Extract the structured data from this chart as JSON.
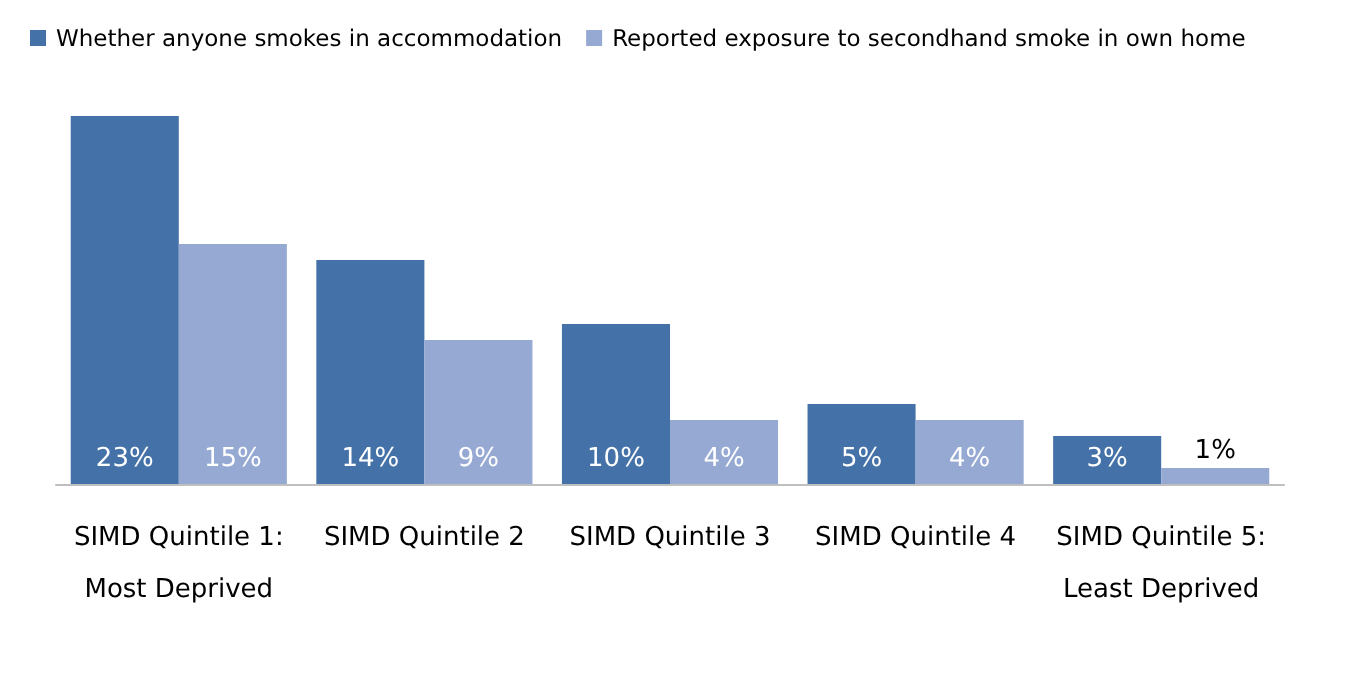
{
  "chart_data": {
    "type": "bar",
    "categories": [
      "SIMD Quintile 1:\nMost Deprived",
      "SIMD Quintile 2",
      "SIMD Quintile 3",
      "SIMD Quintile 4",
      "SIMD Quintile 5:\nLeast Deprived"
    ],
    "series": [
      {
        "name": "Whether anyone smokes in accommodation",
        "color": "#4472a8",
        "values": [
          23,
          14,
          10,
          5,
          3
        ],
        "value_labels": [
          "23%",
          "14%",
          "10%",
          "5%",
          "3%"
        ]
      },
      {
        "name": "Reported exposure to secondhand smoke in own home",
        "color": "#95a9d3",
        "values": [
          15,
          9,
          4,
          4,
          1
        ],
        "value_labels": [
          "15%",
          "9%",
          "4%",
          "4%",
          "1%"
        ]
      }
    ],
    "legend": "top left"
  }
}
